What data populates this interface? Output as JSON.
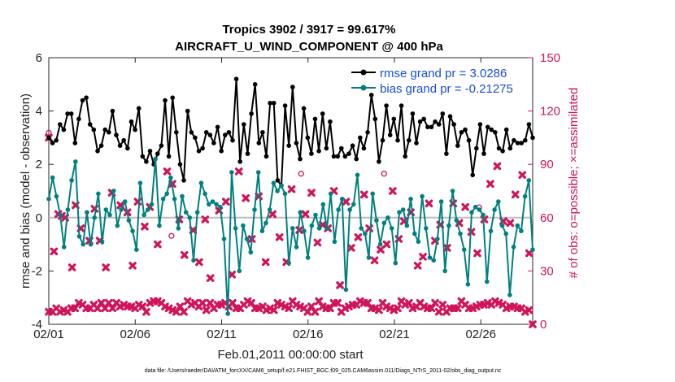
{
  "chart_data": {
    "type": "line",
    "title": "Tropics 3902 / 3917 = 99.617%",
    "subtitle": "AIRCRAFT_U_WIND_COMPONENT @ 400 hPa",
    "xlabel": "Feb.01,2011 00:00:00 start",
    "ylabel": "rmse and bias (model - observation)",
    "ylabel_right": "# of obs: o=possible; ×=assimilated",
    "xlim": [
      0,
      28
    ],
    "ylim": [
      -4,
      6
    ],
    "ylim_right": [
      0,
      150
    ],
    "x_ticks": [
      0,
      5,
      10,
      15,
      20,
      25
    ],
    "x_tick_labels": [
      "02/01",
      "02/06",
      "02/11",
      "02/16",
      "02/21",
      "02/26"
    ],
    "y_ticks": [
      "-4",
      "-2",
      "0",
      "2",
      "4",
      "6"
    ],
    "y_ticks_right": [
      "0",
      "30",
      "60",
      "90",
      "120",
      "150"
    ],
    "zero_line": 0,
    "legend_position": "top-right",
    "series": [
      {
        "name": "rmse grand pr = 3.0286",
        "color": "#000000",
        "values": [
          3.0,
          2.8,
          2.9,
          3.5,
          3.3,
          3.9,
          3.9,
          2.8,
          3.7,
          4.4,
          4.5,
          3.5,
          3.3,
          2.5,
          2.7,
          3.3,
          3.2,
          4.0,
          3.1,
          2.7,
          2.9,
          2.6,
          3.6,
          3.3,
          4.1,
          2.3,
          2.1,
          2.5,
          2.0,
          2.4,
          2.7,
          4.4,
          2.3,
          4.5,
          3.2,
          2.0,
          1.4,
          4.0,
          3.2,
          3.0,
          2.5,
          2.6,
          3.2,
          3.1,
          2.8,
          3.4,
          2.5,
          3.1,
          3.2,
          2.9,
          5.2,
          2.1,
          3.5,
          2.4,
          3.9,
          5.0,
          2.8,
          3.2,
          2.3,
          4.3,
          4.3,
          1.4,
          1.2,
          4.2,
          2.7,
          4.9,
          2.8,
          2.2,
          4.1,
          3.0,
          2.4,
          3.7,
          2.5,
          3.9,
          2.6,
          3.6,
          2.3,
          2.3,
          2.6,
          2.3,
          2.4,
          2.7,
          2.2,
          3.0,
          2.6,
          3.2,
          4.6,
          3.7,
          2.1,
          2.9,
          4.2,
          3.1,
          3.7,
          2.9,
          4.2,
          2.3,
          2.9,
          3.9,
          2.8,
          3.6,
          3.7,
          3.4,
          3.4,
          3.6,
          3.5,
          3.9,
          2.4,
          3.8,
          3.5,
          2.7,
          3.2,
          3.3,
          2.9,
          1.6,
          2.6,
          3.5,
          2.4,
          3.4,
          3.3,
          3.2,
          2.6,
          2.5,
          3.3,
          2.6,
          2.9,
          2.8,
          2.8,
          2.9,
          3.5,
          3.0
        ]
      },
      {
        "name": "bias grand pr = -0.21275",
        "color": "#008080",
        "values": [
          0.7,
          1.5,
          0.8,
          0.1,
          -1.1,
          0.3,
          1.4,
          2.1,
          -0.7,
          -1.0,
          0.2,
          -1.0,
          0.0,
          0.9,
          -0.9,
          0.3,
          0.1,
          1.0,
          -0.3,
          0.3,
          0.6,
          -0.1,
          -0.5,
          -1.2,
          1.3,
          0.1,
          0.3,
          0.5,
          2.2,
          -0.3,
          0.7,
          0.9,
          1.5,
          0.7,
          -0.4,
          0.8,
          0.2,
          0.0,
          -1.6,
          0.2,
          1.3,
          0.9,
          0.5,
          0.6,
          0.5,
          0.4,
          -0.8,
          -3.6,
          1.7,
          -0.4,
          -2.0,
          -0.3,
          -0.8,
          -1.3,
          0.3,
          1.7,
          -0.5,
          -0.2,
          0.3,
          1.3,
          1.0,
          1.2,
          0.9,
          -1.7,
          -0.4,
          -1.1,
          0.2,
          -0.5,
          -1.5,
          -0.3,
          0.1,
          -0.4,
          0.5,
          -0.4,
          0.9,
          -0.9,
          0.3,
          0.7,
          -2.7,
          0.3,
          0.5,
          1.6,
          -0.4,
          -0.6,
          -1.5,
          0.9,
          -0.1,
          -1.0,
          -0.2,
          0.0,
          -0.4,
          -1.7,
          0.2,
          0.3,
          -0.3,
          0.7,
          -0.6,
          -0.9,
          0.8,
          -0.4,
          -1.5,
          -1.6,
          -0.8,
          0.6,
          -2.0,
          -0.3,
          1.0,
          -0.1,
          -0.6,
          -1.2,
          -2.5,
          0.2,
          0.4,
          0.3,
          0.1,
          -2.4,
          -0.5,
          0.3,
          0.6,
          -0.3,
          -0.6,
          -2.9,
          -1.1,
          -0.3,
          -0.5,
          0.8,
          1.4,
          -1.2
        ]
      }
    ],
    "obs_counts": [
      7,
      7,
      9,
      7,
      8,
      7,
      9,
      9,
      12,
      11,
      9,
      9,
      11,
      9,
      12,
      9,
      12,
      9,
      12,
      10,
      11,
      10,
      10,
      9,
      11,
      10,
      7,
      12,
      13,
      13,
      12,
      10,
      9,
      8,
      7,
      10,
      7,
      13,
      11,
      12,
      10,
      12,
      8,
      12,
      9,
      11,
      11,
      12,
      10,
      12,
      9,
      9,
      11,
      13,
      12,
      9,
      9,
      10,
      8,
      9,
      8,
      12,
      11,
      10,
      9,
      13,
      11,
      10,
      9,
      7,
      10,
      7,
      13,
      10,
      9,
      9,
      12,
      12,
      7,
      9,
      10,
      11,
      11,
      13,
      12,
      12,
      9,
      9,
      8,
      12,
      10,
      9,
      8,
      9,
      13,
      11,
      12,
      9,
      10,
      12,
      10,
      9,
      9,
      12,
      7,
      11,
      7,
      9,
      9,
      9,
      13,
      11,
      9,
      9,
      10,
      11,
      11,
      12,
      11,
      13,
      12,
      11,
      9,
      10,
      10,
      9,
      9,
      7,
      8,
      0
    ],
    "obs_points_scattered": [
      {
        "x": 0.0,
        "v": 105
      },
      {
        "x": 0.3,
        "v": 41
      },
      {
        "x": 0.55,
        "v": 62
      },
      {
        "x": 0.75,
        "v": 61
      },
      {
        "x": 0.95,
        "v": 60
      },
      {
        "x": 1.35,
        "v": 32
      },
      {
        "x": 1.55,
        "v": 67
      },
      {
        "x": 1.85,
        "v": 54
      },
      {
        "x": 2.35,
        "v": 47
      },
      {
        "x": 2.65,
        "v": 65
      },
      {
        "x": 2.95,
        "v": 47
      },
      {
        "x": 3.3,
        "v": 32
      },
      {
        "x": 3.65,
        "v": 74
      },
      {
        "x": 4.15,
        "v": 67
      },
      {
        "x": 4.55,
        "v": 63
      },
      {
        "x": 4.85,
        "v": 33
      },
      {
        "x": 5.15,
        "v": 69
      },
      {
        "x": 5.55,
        "v": 55
      },
      {
        "x": 5.85,
        "v": 66
      },
      {
        "x": 6.3,
        "v": 45
      },
      {
        "x": 6.85,
        "v": 86
      },
      {
        "x": 7.15,
        "v": 79
      },
      {
        "x": 7.55,
        "v": 59
      },
      {
        "x": 7.85,
        "v": 39
      },
      {
        "x": 8.35,
        "v": 53
      },
      {
        "x": 8.7,
        "v": 35
      },
      {
        "x": 9.05,
        "v": 59
      },
      {
        "x": 9.35,
        "v": 26
      },
      {
        "x": 9.85,
        "v": 64
      },
      {
        "x": 10.25,
        "v": 69
      },
      {
        "x": 10.6,
        "v": 28
      },
      {
        "x": 11.0,
        "v": 86
      },
      {
        "x": 11.4,
        "v": 71
      },
      {
        "x": 11.75,
        "v": 48
      },
      {
        "x": 12.15,
        "v": 72
      },
      {
        "x": 12.55,
        "v": 35
      },
      {
        "x": 12.95,
        "v": 62
      },
      {
        "x": 13.35,
        "v": 49
      },
      {
        "x": 13.75,
        "v": 35
      },
      {
        "x": 14.05,
        "v": 76
      },
      {
        "x": 14.5,
        "v": 53
      },
      {
        "x": 14.85,
        "v": 62
      },
      {
        "x": 15.2,
        "v": 74
      },
      {
        "x": 15.55,
        "v": 46
      },
      {
        "x": 15.85,
        "v": 56
      },
      {
        "x": 16.15,
        "v": 54
      },
      {
        "x": 16.5,
        "v": 75
      },
      {
        "x": 16.85,
        "v": 22
      },
      {
        "x": 17.2,
        "v": 69
      },
      {
        "x": 17.5,
        "v": 43
      },
      {
        "x": 17.9,
        "v": 49
      },
      {
        "x": 18.25,
        "v": 73
      },
      {
        "x": 18.55,
        "v": 54
      },
      {
        "x": 18.85,
        "v": 36
      },
      {
        "x": 19.2,
        "v": 42
      },
      {
        "x": 19.55,
        "v": 45
      },
      {
        "x": 19.9,
        "v": 75
      },
      {
        "x": 20.25,
        "v": 48
      },
      {
        "x": 20.55,
        "v": 58
      },
      {
        "x": 20.95,
        "v": 63
      },
      {
        "x": 21.35,
        "v": 33
      },
      {
        "x": 21.65,
        "v": 38
      },
      {
        "x": 22.0,
        "v": 68
      },
      {
        "x": 22.35,
        "v": 47
      },
      {
        "x": 22.65,
        "v": 56
      },
      {
        "x": 23.05,
        "v": 43
      },
      {
        "x": 23.4,
        "v": 68
      },
      {
        "x": 23.75,
        "v": 57
      },
      {
        "x": 24.1,
        "v": 66
      },
      {
        "x": 24.45,
        "v": 52
      },
      {
        "x": 24.8,
        "v": 40
      },
      {
        "x": 25.2,
        "v": 59
      },
      {
        "x": 25.55,
        "v": 79
      },
      {
        "x": 25.95,
        "v": 89
      },
      {
        "x": 26.3,
        "v": 58
      },
      {
        "x": 26.7,
        "v": 57
      },
      {
        "x": 27.0,
        "v": 73
      },
      {
        "x": 27.4,
        "v": 84
      },
      {
        "x": 27.8,
        "v": 40
      }
    ],
    "obs_possible_circles": [
      {
        "x": 0.0,
        "v": 105
      },
      {
        "x": 7.1,
        "v": 47
      },
      {
        "x": 14.6,
        "v": 82
      },
      {
        "x": 19.4,
        "v": 82
      },
      {
        "x": 24.9,
        "v": 63
      }
    ]
  }
}
